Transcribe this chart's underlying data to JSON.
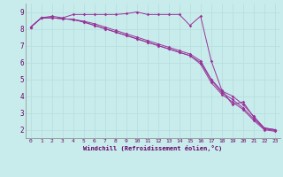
{
  "xlabel": "Windchill (Refroidissement éolien,°C)",
  "background_color": "#c8ecec",
  "grid_color": "#aadddd",
  "line_color": "#993399",
  "xlim": [
    -0.5,
    23.5
  ],
  "ylim": [
    1.5,
    9.5
  ],
  "xticks": [
    0,
    1,
    2,
    3,
    4,
    5,
    6,
    7,
    8,
    9,
    10,
    11,
    12,
    13,
    14,
    15,
    16,
    17,
    18,
    19,
    20,
    21,
    22,
    23
  ],
  "yticks": [
    2,
    3,
    4,
    5,
    6,
    7,
    8,
    9
  ],
  "line1": [
    8.1,
    8.65,
    8.75,
    8.65,
    8.85,
    8.85,
    8.85,
    8.85,
    8.85,
    8.9,
    9.0,
    8.85,
    8.85,
    8.85,
    8.85,
    8.2,
    8.75,
    6.1,
    4.35,
    3.5,
    3.65,
    2.75,
    2.1,
    2.0
  ],
  "line2": [
    8.1,
    8.65,
    8.65,
    8.6,
    8.55,
    8.45,
    8.3,
    8.1,
    7.9,
    7.7,
    7.5,
    7.3,
    7.1,
    6.9,
    6.7,
    6.5,
    6.1,
    5.0,
    4.3,
    4.0,
    3.5,
    2.8,
    2.1,
    2.0
  ],
  "line3": [
    8.1,
    8.65,
    8.65,
    8.6,
    8.55,
    8.4,
    8.2,
    8.0,
    7.8,
    7.6,
    7.4,
    7.2,
    7.0,
    6.8,
    6.6,
    6.4,
    6.0,
    4.95,
    4.2,
    3.8,
    3.3,
    2.65,
    2.05,
    1.95
  ],
  "line4": [
    8.1,
    8.65,
    8.65,
    8.6,
    8.55,
    8.4,
    8.2,
    8.0,
    7.8,
    7.6,
    7.4,
    7.2,
    7.0,
    6.8,
    6.6,
    6.4,
    5.9,
    4.8,
    4.1,
    3.65,
    3.2,
    2.55,
    2.0,
    1.9
  ]
}
